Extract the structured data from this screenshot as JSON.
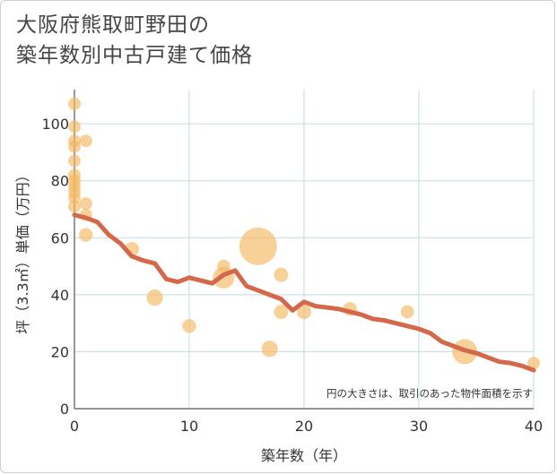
{
  "title_lines": [
    "大阪府熊取町野田の",
    "築年数別中古戸建て価格"
  ],
  "note": "円の大きさは、取引のあった物件面積を示す",
  "colors": {
    "bubble": "#f5b962",
    "line": "#d4684b",
    "grid": "#c5d8e3",
    "text": "#333333"
  },
  "chart_data": {
    "type": "scatter",
    "xlabel": "築年数（年）",
    "ylabel": "坪（3.3㎡）単価（万円）",
    "xlim": [
      0,
      40
    ],
    "ylim": [
      0,
      112
    ],
    "xticks": [
      0,
      10,
      20,
      30,
      40
    ],
    "yticks": [
      0,
      20,
      40,
      60,
      80,
      100
    ],
    "grid": true,
    "bubbles": [
      {
        "x": 0,
        "y": 107,
        "size": 1
      },
      {
        "x": 0,
        "y": 99,
        "size": 1
      },
      {
        "x": 0,
        "y": 94,
        "size": 1
      },
      {
        "x": 0,
        "y": 92,
        "size": 1
      },
      {
        "x": 0,
        "y": 87,
        "size": 1
      },
      {
        "x": 0,
        "y": 82,
        "size": 1
      },
      {
        "x": 0,
        "y": 80,
        "size": 1
      },
      {
        "x": 0,
        "y": 78,
        "size": 1
      },
      {
        "x": 0,
        "y": 76,
        "size": 1
      },
      {
        "x": 0,
        "y": 74,
        "size": 1
      },
      {
        "x": 0,
        "y": 71,
        "size": 1
      },
      {
        "x": 1,
        "y": 94,
        "size": 1
      },
      {
        "x": 1,
        "y": 72,
        "size": 1
      },
      {
        "x": 1,
        "y": 68,
        "size": 1
      },
      {
        "x": 1,
        "y": 61,
        "size": 1.2
      },
      {
        "x": 5,
        "y": 56,
        "size": 1.3
      },
      {
        "x": 7,
        "y": 39,
        "size": 1.7
      },
      {
        "x": 10,
        "y": 29,
        "size": 1.2
      },
      {
        "x": 13,
        "y": 50,
        "size": 1.1
      },
      {
        "x": 13,
        "y": 46,
        "size": 3
      },
      {
        "x": 16,
        "y": 57,
        "size": 9
      },
      {
        "x": 17,
        "y": 21,
        "size": 1.7
      },
      {
        "x": 18,
        "y": 47,
        "size": 1.3
      },
      {
        "x": 18,
        "y": 34,
        "size": 1.3
      },
      {
        "x": 20,
        "y": 34,
        "size": 1.3
      },
      {
        "x": 24,
        "y": 35,
        "size": 1.2
      },
      {
        "x": 29,
        "y": 34,
        "size": 1.1
      },
      {
        "x": 34,
        "y": 20,
        "size": 4
      },
      {
        "x": 40,
        "y": 16,
        "size": 1
      }
    ],
    "trend": {
      "x": [
        0,
        1,
        2,
        3,
        4,
        5,
        6,
        7,
        8,
        9,
        10,
        11,
        12,
        13,
        14,
        15,
        16,
        17,
        18,
        19,
        20,
        21,
        22,
        23,
        24,
        25,
        26,
        27,
        28,
        29,
        30,
        31,
        32,
        33,
        34,
        35,
        36,
        37,
        38,
        39,
        40
      ],
      "y": [
        68,
        67,
        65.5,
        61,
        58,
        53.5,
        52,
        51,
        45.5,
        44.5,
        46,
        45,
        44,
        47,
        48.5,
        43,
        41.5,
        40,
        38.5,
        34.5,
        37.5,
        36,
        35.5,
        35,
        34,
        33,
        31.5,
        31,
        30,
        29,
        28,
        26.5,
        23.5,
        22,
        20.5,
        19.5,
        18,
        16.5,
        16,
        15,
        13.5
      ]
    }
  }
}
